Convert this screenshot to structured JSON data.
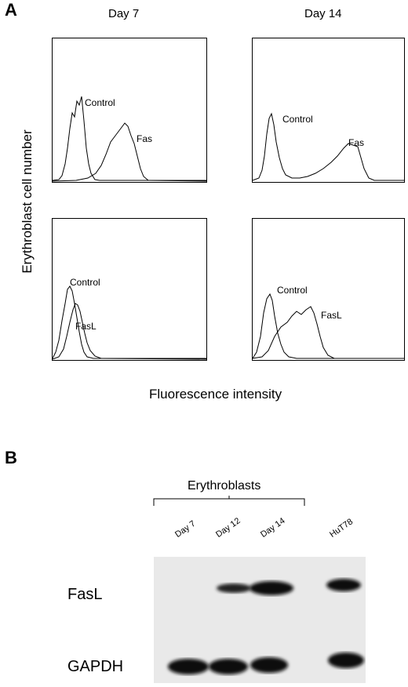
{
  "figure": {
    "panel_a_letter": "A",
    "panel_b_letter": "B",
    "col_titles": [
      "Day 7",
      "Day 14"
    ],
    "y_axis_label": "Erythroblast cell number",
    "x_axis_label": "Fluorescence intensity",
    "plots": [
      {
        "labels": [
          "Control",
          "Fas"
        ]
      },
      {
        "labels": [
          "Control",
          "Fas"
        ]
      },
      {
        "labels": [
          "Control",
          "FasL"
        ]
      },
      {
        "labels": [
          "Control",
          "FasL"
        ]
      }
    ],
    "blot": {
      "group_label": "Erythroblasts",
      "lanes": [
        "Day 7",
        "Day 12",
        "Day 14",
        "HuT78"
      ],
      "rows": [
        "FasL",
        "GAPDH"
      ]
    }
  }
}
